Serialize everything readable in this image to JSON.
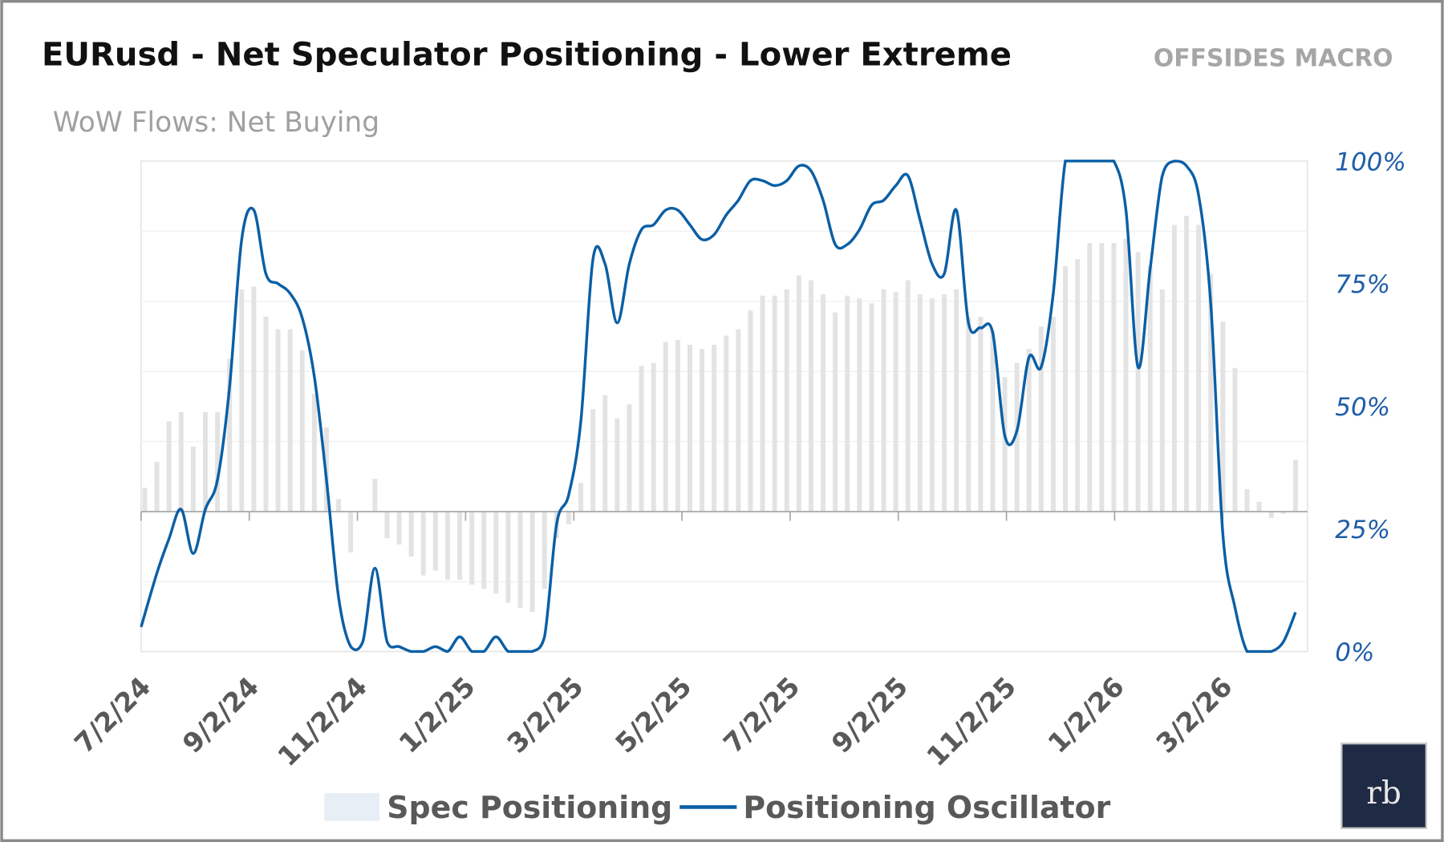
{
  "header": {
    "title": "EURusd - Net Speculator Positioning - Lower Extreme",
    "brand": "OFFSIDES MACRO",
    "subtitle": "WoW Flows: Net Buying"
  },
  "logo": {
    "text": "rb",
    "color": "#1f2a44"
  },
  "chart_data": {
    "type": "bar+line",
    "title": "EURusd - Net Speculator Positioning - Lower Extreme",
    "subtitle": "WoW Flows: Net Buying",
    "x_tick_labels": [
      "7/2/24",
      "9/2/24",
      "11/2/24",
      "1/2/25",
      "3/2/25",
      "5/2/25",
      "7/2/25",
      "9/2/25",
      "11/2/25",
      "1/2/26",
      "3/2/26"
    ],
    "right_axis": {
      "tick_labels": [
        "0%",
        "25%",
        "50%",
        "75%",
        "100%"
      ],
      "ylim": [
        0,
        100
      ]
    },
    "left_axis_hidden_ylim": [
      -2,
      5
    ],
    "grid": "horizontal, faint",
    "legend_position": "bottom",
    "series": [
      {
        "name": "Spec Positioning",
        "type": "bar",
        "axis": "left",
        "color": "#e3e3e3",
        "values": [
          0.34,
          0.71,
          1.29,
          1.42,
          0.93,
          1.42,
          1.42,
          2.18,
          3.17,
          3.21,
          2.78,
          2.6,
          2.6,
          2.3,
          1.68,
          1.2,
          0.18,
          -0.58,
          0,
          0.47,
          -0.38,
          -0.47,
          -0.64,
          -0.91,
          -0.84,
          -0.97,
          -0.97,
          -1.04,
          -1.1,
          -1.17,
          -1.3,
          -1.37,
          -1.43,
          -1.1,
          -0.38,
          -0.18,
          0.41,
          1.46,
          1.66,
          1.33,
          1.53,
          2.08,
          2.12,
          2.42,
          2.45,
          2.38,
          2.32,
          2.38,
          2.51,
          2.6,
          2.87,
          3.08,
          3.08,
          3.17,
          3.37,
          3.3,
          3.1,
          2.84,
          3.08,
          3.04,
          2.97,
          3.17,
          3.13,
          3.3,
          3.1,
          3.04,
          3.1,
          3.17,
          2.78,
          2.78,
          2.58,
          1.92,
          2.12,
          2.32,
          2.64,
          2.78,
          3.5,
          3.6,
          3.83,
          3.83,
          3.83,
          3.89,
          3.7,
          3.5,
          3.17,
          4.09,
          4.22,
          4.09,
          3.39,
          2.71,
          2.05,
          0.32,
          0.14,
          -0.09,
          -0.03,
          0.74
        ]
      },
      {
        "name": "Positioning Oscillator",
        "type": "line",
        "axis": "right",
        "unit": "%",
        "color": "#0b5fa5",
        "values": [
          5,
          16,
          23,
          29,
          20,
          29,
          35,
          54,
          84,
          90,
          77,
          75,
          73,
          68,
          56,
          35,
          11,
          1,
          2,
          17,
          2,
          1,
          0,
          0,
          1,
          0,
          3,
          0,
          0,
          3,
          0,
          0,
          0,
          3,
          26,
          32,
          47,
          80,
          79,
          67,
          79,
          86,
          87,
          90,
          90,
          87,
          84,
          85,
          89,
          92,
          96,
          96,
          95,
          96,
          99,
          98,
          92,
          83,
          83,
          86,
          91,
          92,
          95,
          97,
          88,
          79,
          77,
          90,
          67,
          66,
          65,
          44,
          45,
          60,
          58,
          73,
          100,
          100,
          100,
          100,
          100,
          90,
          58,
          78,
          97,
          100,
          99,
          93,
          71,
          24,
          9,
          0,
          0,
          0,
          2,
          8
        ]
      }
    ]
  }
}
